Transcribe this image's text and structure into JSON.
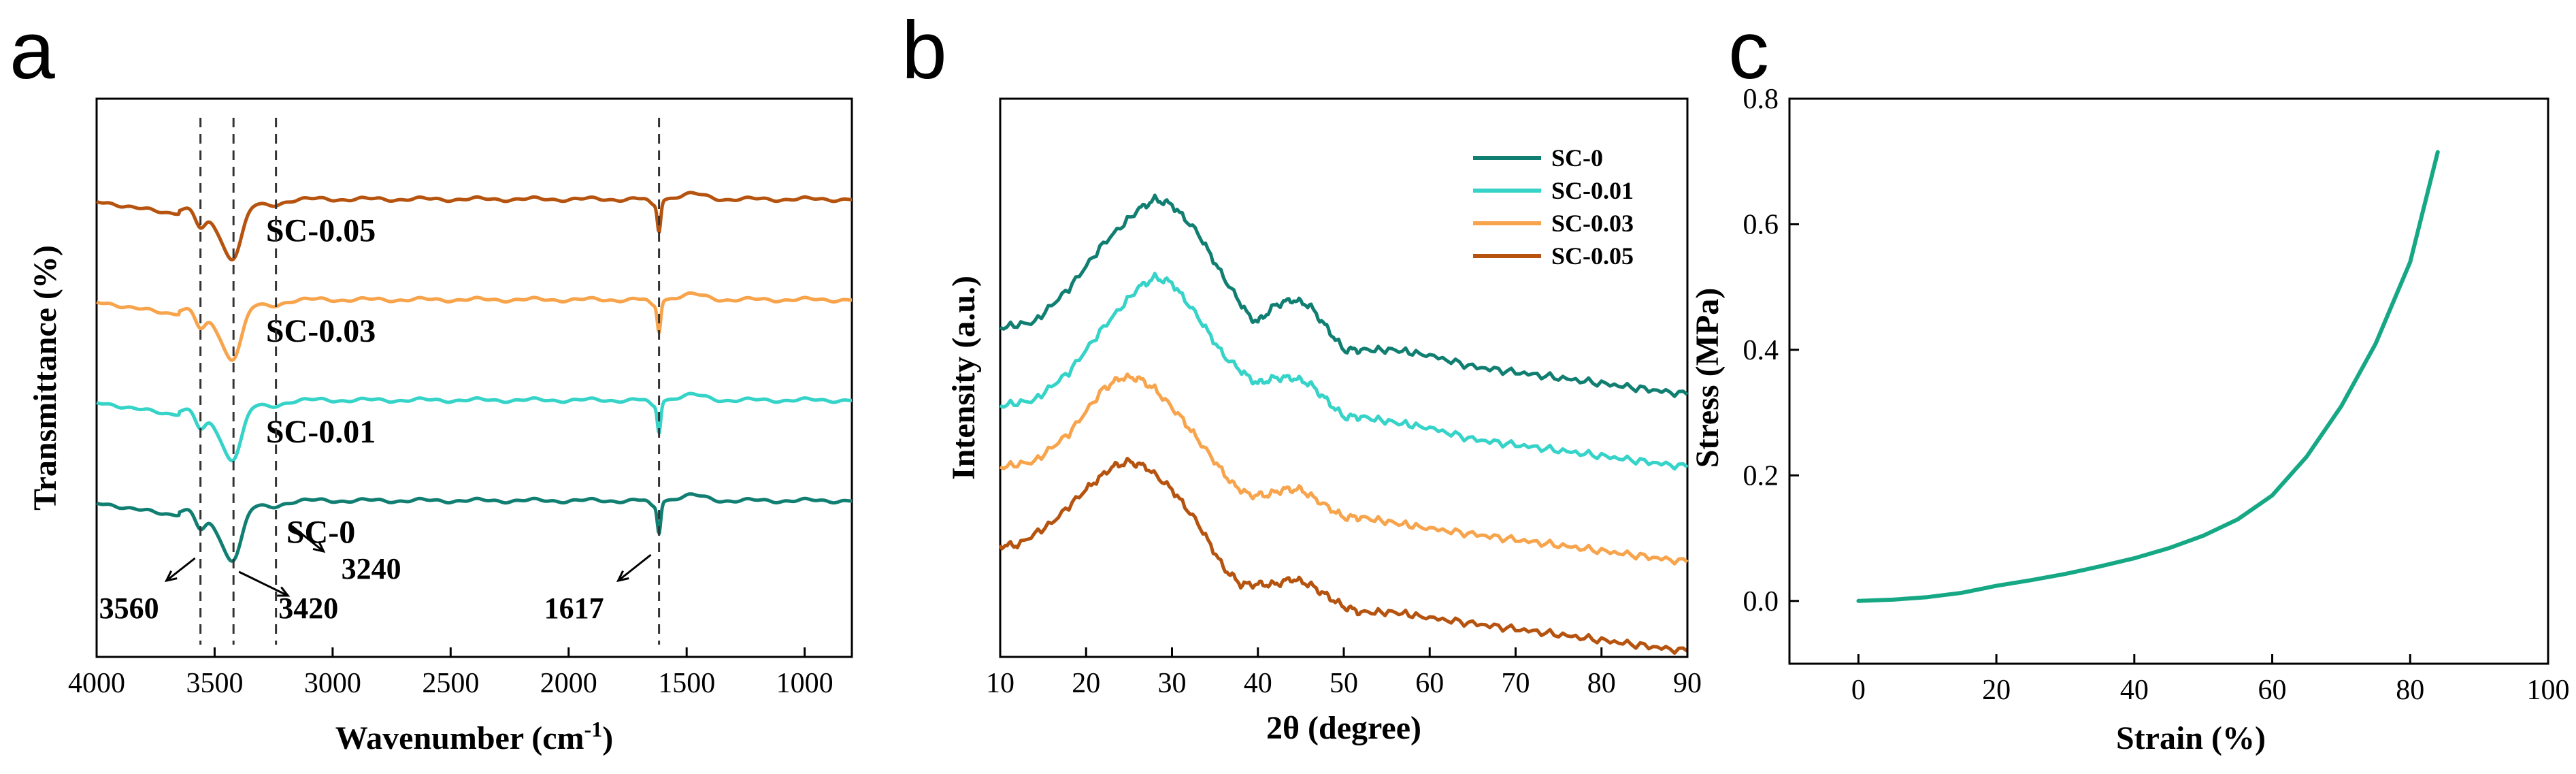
{
  "panels": {
    "a": "a",
    "b": "b",
    "c": "c"
  },
  "chart_data": [
    {
      "id": "a",
      "type": "line",
      "title": "",
      "xlabel": "Wavenumber",
      "xunit": "(cm⁻¹)",
      "ylabel": "Transmittance (%)",
      "xlim": [
        4000,
        800
      ],
      "xticks": [
        4000,
        3500,
        3000,
        2500,
        2000,
        1500,
        1000
      ],
      "xtick_labels": [
        "4000",
        "3500",
        "3000",
        "2500",
        "2000",
        "1500",
        "1000"
      ],
      "ylim": [
        0,
        100
      ],
      "y_ticks_shown": false,
      "dashed_lines": [
        3560,
        3420,
        3240,
        1617
      ],
      "series": [
        {
          "name": "SC-0.05",
          "label": "SC-0.05",
          "color": "#b5530f",
          "offset": 82,
          "dip": 1.0
        },
        {
          "name": "SC-0.03",
          "label": "SC-0.03",
          "color": "#f7a44c",
          "offset": 64,
          "dip": 1.0
        },
        {
          "name": "SC-0.01",
          "label": "SC-0.01",
          "color": "#35d3c8",
          "offset": 46,
          "dip": 1.0
        },
        {
          "name": "SC-0",
          "label": "SC-0",
          "color": "#107f72",
          "offset": 28,
          "dip": 1.0
        }
      ],
      "peak_labels": [
        {
          "text": "3560",
          "at": 3560
        },
        {
          "text": "3420",
          "at": 3420
        },
        {
          "text": "3240",
          "at": 3240
        },
        {
          "text": "1617",
          "at": 1617
        }
      ]
    },
    {
      "id": "b",
      "type": "line",
      "title": "",
      "xlabel": "2θ (degree)",
      "ylabel": "Intensity (a.u.)",
      "xlim": [
        10,
        90
      ],
      "xticks": [
        10,
        20,
        30,
        40,
        50,
        60,
        70,
        80,
        90
      ],
      "xtick_labels": [
        "10",
        "20",
        "30",
        "40",
        "50",
        "60",
        "70",
        "80",
        "90"
      ],
      "ylim": [
        0,
        100
      ],
      "y_ticks_shown": false,
      "legend_position": "top-right",
      "series": [
        {
          "name": "SC-0",
          "color": "#107f72",
          "points": [
            [
              10,
              59
            ],
            [
              14,
              60
            ],
            [
              18,
              66
            ],
            [
              22,
              74
            ],
            [
              26,
              80
            ],
            [
              28,
              82
            ],
            [
              30,
              81
            ],
            [
              33,
              76
            ],
            [
              36,
              68
            ],
            [
              39,
              61
            ],
            [
              40,
              60
            ],
            [
              42,
              63
            ],
            [
              44,
              64
            ],
            [
              46,
              63
            ],
            [
              48,
              59
            ],
            [
              50,
              55
            ],
            [
              52,
              55
            ],
            [
              56,
              55
            ],
            [
              60,
              54
            ],
            [
              65,
              52
            ],
            [
              70,
              51
            ],
            [
              75,
              50
            ],
            [
              80,
              49
            ],
            [
              85,
              48
            ],
            [
              90,
              47
            ]
          ]
        },
        {
          "name": "SC-0.01",
          "color": "#35d3c8",
          "points": [
            [
              10,
              45
            ],
            [
              14,
              46
            ],
            [
              18,
              51
            ],
            [
              22,
              59
            ],
            [
              26,
              66
            ],
            [
              28,
              68
            ],
            [
              30,
              67
            ],
            [
              33,
              61
            ],
            [
              36,
              54
            ],
            [
              39,
              50
            ],
            [
              40,
              49
            ],
            [
              42,
              50
            ],
            [
              44,
              50
            ],
            [
              46,
              49
            ],
            [
              48,
              46
            ],
            [
              50,
              43
            ],
            [
              52,
              43
            ],
            [
              56,
              42
            ],
            [
              60,
              41
            ],
            [
              65,
              39
            ],
            [
              70,
              38
            ],
            [
              75,
              37
            ],
            [
              80,
              36
            ],
            [
              85,
              35
            ],
            [
              90,
              34
            ]
          ]
        },
        {
          "name": "SC-0.03",
          "color": "#f7a44c",
          "points": [
            [
              10,
              34
            ],
            [
              14,
              35
            ],
            [
              18,
              40
            ],
            [
              22,
              48
            ],
            [
              24,
              50
            ],
            [
              26,
              50
            ],
            [
              28,
              48
            ],
            [
              31,
              43
            ],
            [
              34,
              37
            ],
            [
              37,
              31
            ],
            [
              39,
              29
            ],
            [
              41,
              29
            ],
            [
              43,
              30
            ],
            [
              45,
              30
            ],
            [
              47,
              28
            ],
            [
              50,
              25
            ],
            [
              52,
              25
            ],
            [
              56,
              24
            ],
            [
              60,
              23
            ],
            [
              65,
              22
            ],
            [
              70,
              21
            ],
            [
              75,
              20
            ],
            [
              80,
              19
            ],
            [
              85,
              18
            ],
            [
              90,
              17
            ]
          ]
        },
        {
          "name": "SC-0.05",
          "color": "#b5530f",
          "points": [
            [
              10,
              20
            ],
            [
              12,
              20
            ],
            [
              16,
              24
            ],
            [
              20,
              30
            ],
            [
              23,
              34
            ],
            [
              25,
              35
            ],
            [
              27,
              34
            ],
            [
              30,
              30
            ],
            [
              33,
              24
            ],
            [
              36,
              16
            ],
            [
              38,
              13
            ],
            [
              40,
              13
            ],
            [
              42,
              13
            ],
            [
              44,
              14
            ],
            [
              46,
              13
            ],
            [
              48,
              11
            ],
            [
              50,
              9
            ],
            [
              52,
              8
            ],
            [
              56,
              8
            ],
            [
              60,
              7
            ],
            [
              65,
              6
            ],
            [
              70,
              5
            ],
            [
              75,
              4
            ],
            [
              80,
              3
            ],
            [
              85,
              2
            ],
            [
              90,
              1
            ]
          ]
        }
      ],
      "legend": [
        "SC-0",
        "SC-0.01",
        "SC-0.03",
        "SC-0.05"
      ]
    },
    {
      "id": "c",
      "type": "line",
      "title": "",
      "xlabel": "Strain (%)",
      "ylabel": "Stress (MPa)",
      "xlim": [
        -10,
        100
      ],
      "ylim": [
        -0.1,
        0.8
      ],
      "xticks": [
        0,
        20,
        40,
        60,
        80,
        100
      ],
      "xtick_labels": [
        "0",
        "20",
        "40",
        "60",
        "80",
        "100"
      ],
      "yticks": [
        0.0,
        0.2,
        0.4,
        0.6,
        0.8
      ],
      "ytick_labels": [
        "0.0",
        "0.2",
        "0.4",
        "0.6",
        "0.8"
      ],
      "series": [
        {
          "name": "stress-strain",
          "color": "#16a885",
          "points": [
            [
              0,
              0
            ],
            [
              5,
              0.002
            ],
            [
              10,
              0.006
            ],
            [
              15,
              0.013
            ],
            [
              20,
              0.024
            ],
            [
              25,
              0.033
            ],
            [
              30,
              0.043
            ],
            [
              35,
              0.055
            ],
            [
              40,
              0.068
            ],
            [
              45,
              0.084
            ],
            [
              50,
              0.104
            ],
            [
              55,
              0.13
            ],
            [
              60,
              0.168
            ],
            [
              65,
              0.23
            ],
            [
              70,
              0.31
            ],
            [
              75,
              0.41
            ],
            [
              80,
              0.54
            ],
            [
              84,
              0.715
            ]
          ]
        }
      ]
    }
  ]
}
